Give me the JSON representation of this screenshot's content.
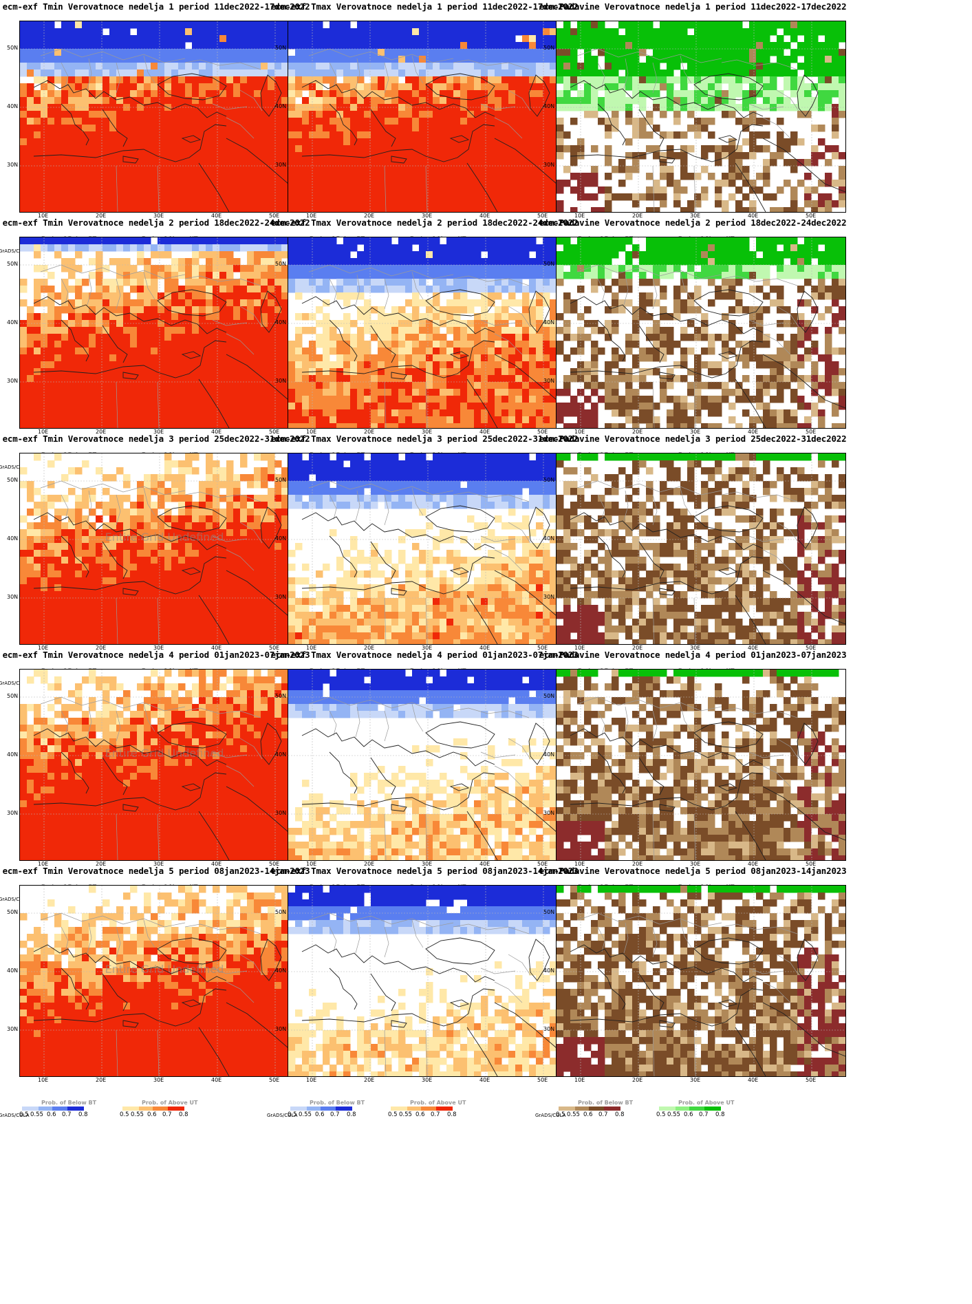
{
  "footer_tag": "GrADS/COLA",
  "lat_labels": [
    "50N",
    "40N",
    "30N"
  ],
  "lon_labels": [
    "10E",
    "20E",
    "30E",
    "40E",
    "50E"
  ],
  "legend_ticks": [
    "0.5",
    "0.55",
    "0.6",
    "0.7",
    "0.8"
  ],
  "legends": {
    "below": {
      "title": "Prob. of Below BT",
      "colors": [
        "#c8d8f8",
        "#94b4f4",
        "#5a7ef0",
        "#1c2cd8"
      ]
    },
    "above": {
      "title": "Prob. of Above UT",
      "colors": [
        "#ffe8a8",
        "#fcc070",
        "#f88838",
        "#f02808"
      ]
    },
    "dry": {
      "title": "Prob. of Below BT",
      "colors": [
        "#d8b888",
        "#b08858",
        "#7a4c28",
        "#8c2c2c"
      ]
    },
    "wet": {
      "title": "Prob. of Above UT",
      "colors": [
        "#c0f8b0",
        "#8cf080",
        "#40d840",
        "#08c008"
      ]
    }
  },
  "overlay_text": "Entire Grid Undefined",
  "panels": [
    {
      "title": "ecm-exf Tmin Verovatnoce nedelja 1 period 11dec2022-17dec2022",
      "kind": "temp",
      "above": 0.82,
      "below": 0.18,
      "legend_left": "below",
      "legend_right": "above"
    },
    {
      "title": "ecm-exf Tmax Verovatnoce nedelja 1 period 11dec2022-17dec2022",
      "kind": "temp",
      "above": 0.78,
      "below": 0.2,
      "legend_left": "below",
      "legend_right": "above"
    },
    {
      "title": "ecm-Padavine Verovatnoce nedelja 1 period 11dec2022-17dec2022",
      "kind": "precip",
      "dry": 0.45,
      "wet": 0.42,
      "legend_left": "dry",
      "legend_right": "wet"
    },
    {
      "title": "ecm-exf Tmin Verovatnoce nedelja 2 period 18dec2022-24dec2022",
      "kind": "temp",
      "above": 0.75,
      "below": 0.03,
      "legend_left": "below",
      "legend_right": "above"
    },
    {
      "title": "ecm-exf Tmax Verovatnoce nedelja 2 period 18dec2022-24dec2022",
      "kind": "temp",
      "above": 0.5,
      "below": 0.18,
      "legend_left": "below",
      "legend_right": "above"
    },
    {
      "title": "ecm-Padavine Verovatnoce nedelja 2 period 18dec2022-24dec2022",
      "kind": "precip",
      "dry": 0.6,
      "wet": 0.18,
      "legend_left": "dry",
      "legend_right": "wet"
    },
    {
      "title": "ecm-exf Tmin Verovatnoce nedelja 3 period 25dec2022-31dec2022",
      "kind": "temp",
      "above": 0.72,
      "below": 0.0,
      "overlay": true,
      "legend_left": "below",
      "legend_right": "above"
    },
    {
      "title": "ecm-exf Tmax Verovatnoce nedelja 3 period 25dec2022-31dec2022",
      "kind": "temp",
      "above": 0.28,
      "below": 0.2,
      "legend_left": "below",
      "legend_right": "above"
    },
    {
      "title": "ecm-Padavine Verovatnoce nedelja 3 period 25dec2022-31dec2022",
      "kind": "precip",
      "dry": 0.78,
      "wet": 0.02,
      "legend_left": "dry",
      "legend_right": "wet"
    },
    {
      "title": "ecm-exf Tmin Verovatnoce nedelja 4 period 01jan2023-07jan2023",
      "kind": "temp",
      "above": 0.8,
      "below": 0.0,
      "overlay": true,
      "legend_left": "below",
      "legend_right": "above"
    },
    {
      "title": "ecm-exf Tmax Verovatnoce nedelja 4 period 01jan2023-07jan2023",
      "kind": "temp",
      "above": 0.15,
      "below": 0.15,
      "legend_left": "below",
      "legend_right": "above"
    },
    {
      "title": "ecm-Padavine Verovatnoce nedelja 4 period 01jan2023-07jan2023",
      "kind": "precip",
      "dry": 0.85,
      "wet": 0.02,
      "legend_left": "dry",
      "legend_right": "wet"
    },
    {
      "title": "ecm-exf Tmin Verovatnoce nedelja 5 period 08jan2023-14jan2023",
      "kind": "temp",
      "above": 0.7,
      "below": 0.0,
      "overlay": true,
      "legend_left": "below",
      "legend_right": "above"
    },
    {
      "title": "ecm-exf Tmax Verovatnoce nedelja 5 period 08jan2023-14jan2023",
      "kind": "temp",
      "above": 0.12,
      "below": 0.16,
      "legend_left": "below",
      "legend_right": "above"
    },
    {
      "title": "ecm-Padavine Verovatnoce nedelja 5 period 08jan2023-14jan2023",
      "kind": "precip",
      "dry": 0.86,
      "wet": 0.03,
      "legend_left": "dry",
      "legend_right": "wet"
    }
  ]
}
